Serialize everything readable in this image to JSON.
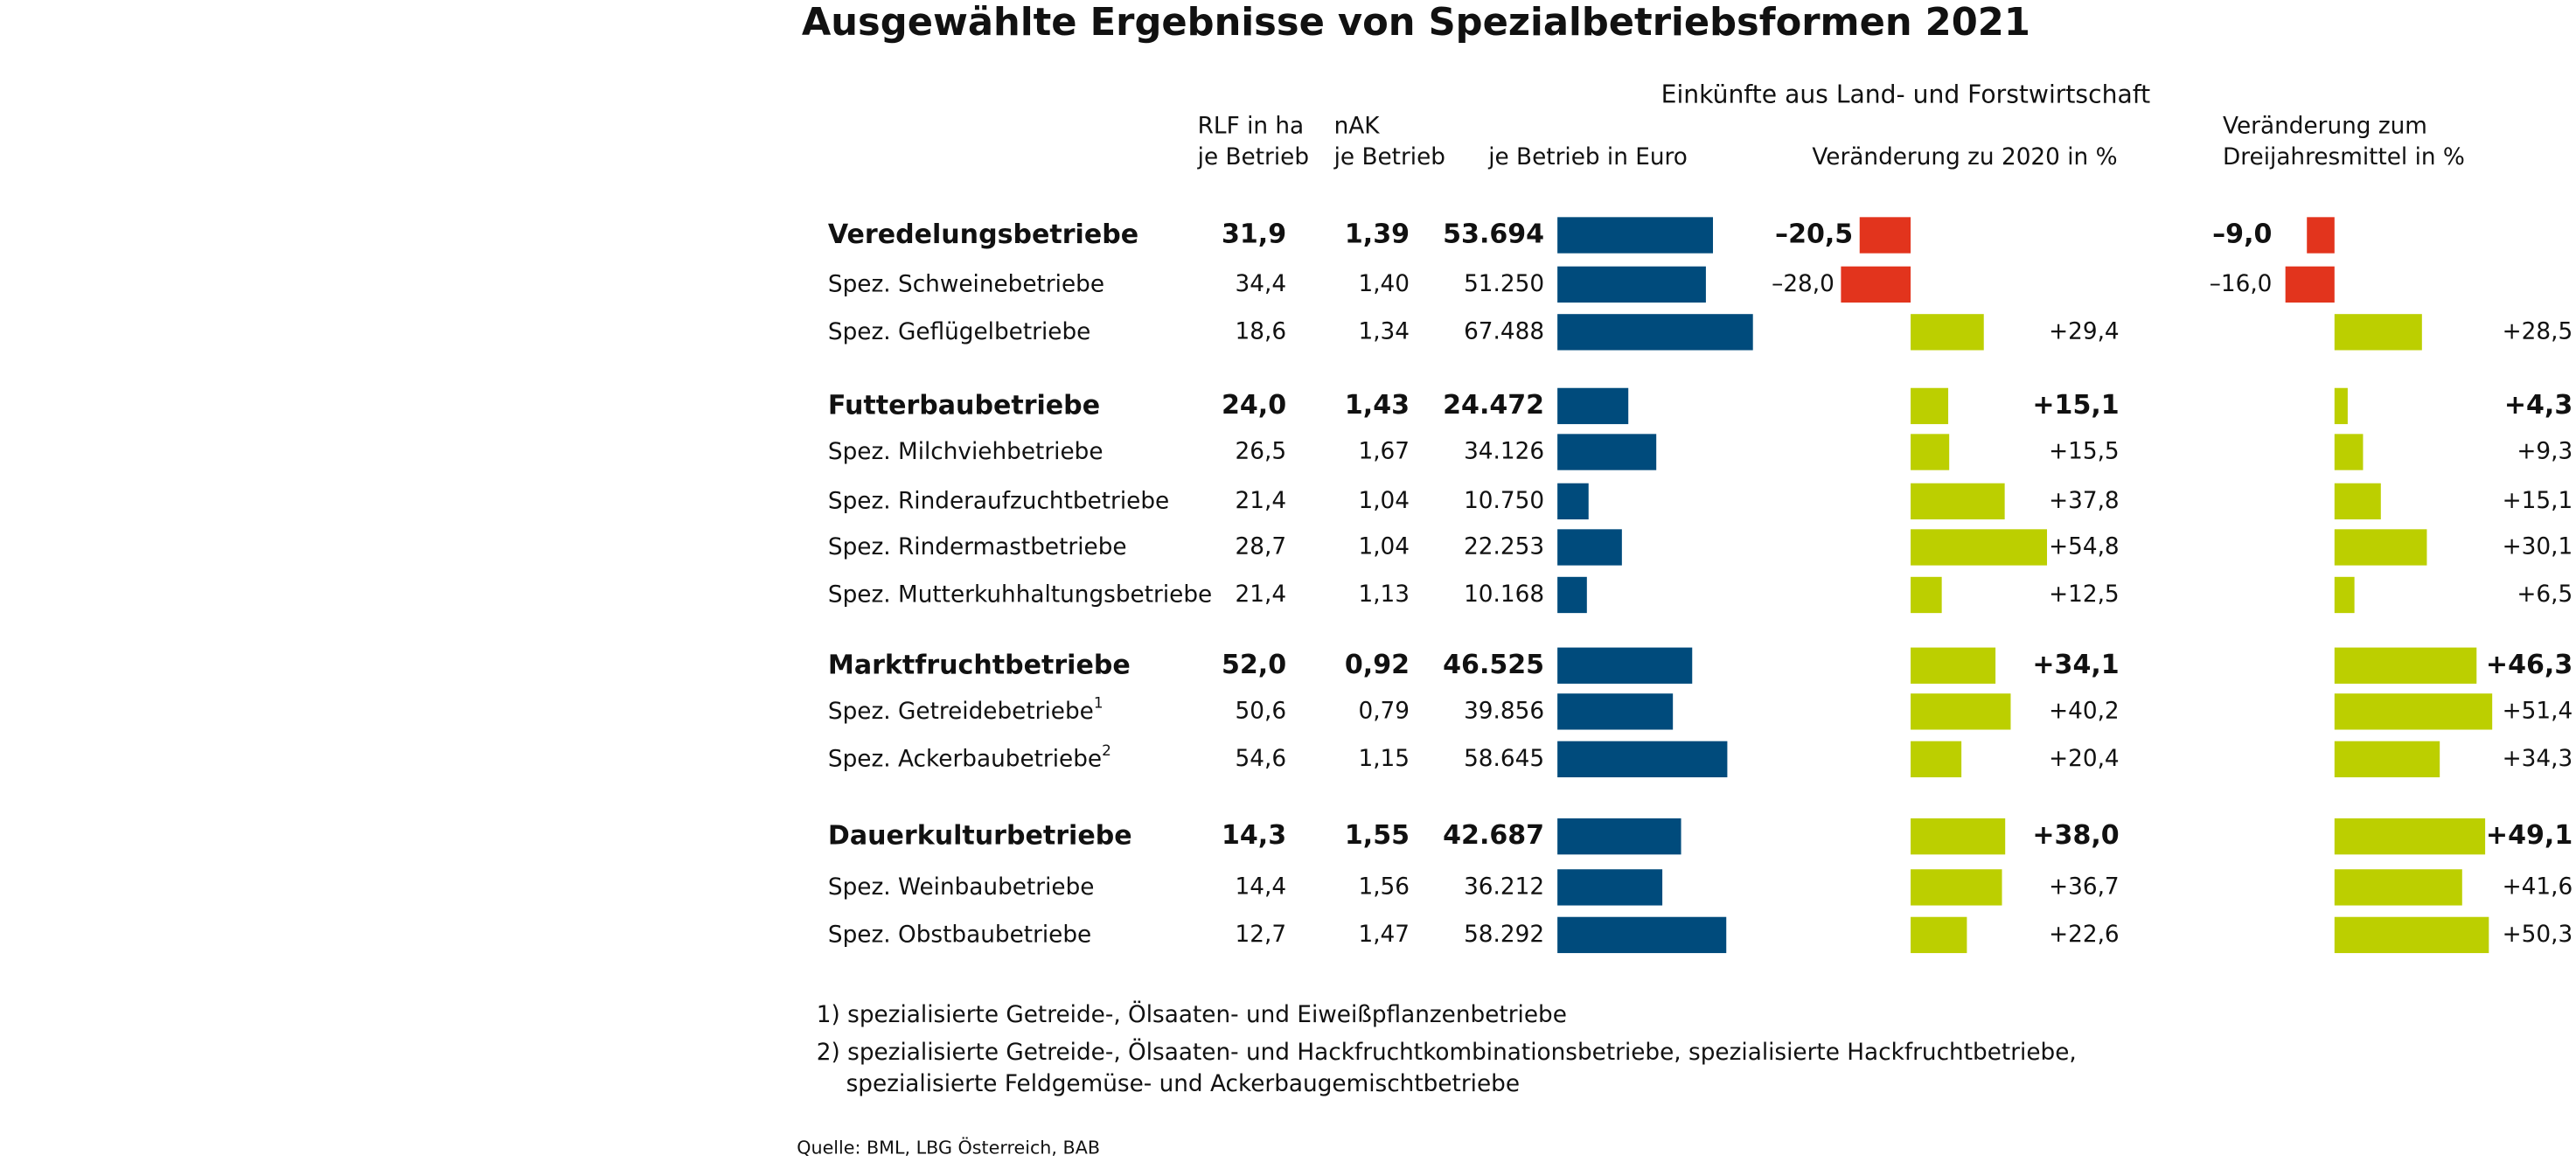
{
  "chart_data": {
    "type": "table-bar",
    "title": "Ausgewählte Ergebnisse von Spezialbetriebsformen 2021",
    "group_header": "Einkünfte aus Land- und Forstwirtschaft",
    "categories": [
      "Veredelungsbetriebe",
      "Spez. Schweinebetriebe",
      "Spez. Geflügelbetriebe",
      "Futterbaubetriebe",
      "Spez. Milchviehbetriebe",
      "Spez. Rinderaufzuchtbetriebe",
      "Spez. Rindermastbetriebe",
      "Spez. Mutterkuhhaltungsbetriebe",
      "Marktfruchtbetriebe",
      "Spez. Getreidebetriebe",
      "Spez. Ackerbaubetriebe",
      "Dauerkulturbetriebe",
      "Spez. Weinbaubetriebe",
      "Spez. Obstbaubetriebe"
    ],
    "category_notes": [
      null,
      null,
      null,
      null,
      null,
      null,
      null,
      null,
      null,
      "1",
      "2",
      null,
      null,
      null
    ],
    "bold": [
      true,
      false,
      false,
      true,
      false,
      false,
      false,
      false,
      true,
      false,
      false,
      true,
      false,
      false
    ],
    "series": [
      {
        "name": [
          "RLF in ha",
          "je Betrieb"
        ],
        "values": [
          31.9,
          34.4,
          18.6,
          24.0,
          26.5,
          21.4,
          28.7,
          21.4,
          52.0,
          50.6,
          54.6,
          14.3,
          14.4,
          12.7
        ],
        "value_labels": [
          "31,9",
          "34,4",
          "18,6",
          "24,0",
          "26,5",
          "21,4",
          "28,7",
          "21,4",
          "52,0",
          "50,6",
          "54,6",
          "14,3",
          "14,4",
          "12,7"
        ]
      },
      {
        "name": [
          "nAK",
          "je Betrieb"
        ],
        "values": [
          1.39,
          1.4,
          1.34,
          1.43,
          1.67,
          1.04,
          1.04,
          1.13,
          0.92,
          0.79,
          1.15,
          1.55,
          1.56,
          1.47
        ],
        "value_labels": [
          "1,39",
          "1,40",
          "1,34",
          "1,43",
          "1,67",
          "1,04",
          "1,04",
          "1,13",
          "0,92",
          "0,79",
          "1,15",
          "1,55",
          "1,56",
          "1,47"
        ]
      },
      {
        "name": [
          "je Betrieb in Euro"
        ],
        "color": "#004b7c",
        "values": [
          53694,
          51250,
          67488,
          24472,
          34126,
          10750,
          22253,
          10168,
          46525,
          39856,
          58645,
          42687,
          36212,
          58292
        ],
        "value_labels": [
          "53.694",
          "51.250",
          "67.488",
          "24.472",
          "34.126",
          "10.750",
          "22.253",
          "10.168",
          "46.525",
          "39.856",
          "58.645",
          "42.687",
          "36.212",
          "58.292"
        ]
      },
      {
        "name": [
          "Veränderung zu 2020 in %"
        ],
        "color": "#bccf00",
        "negative_color": "#e2341d",
        "values": [
          -20.5,
          -28.0,
          29.4,
          15.1,
          15.5,
          37.8,
          54.8,
          12.5,
          34.1,
          40.2,
          20.4,
          38.0,
          36.7,
          22.6
        ],
        "value_labels": [
          "–20,5",
          "–28,0",
          "+29,4",
          "+15,1",
          "+15,5",
          "+37,8",
          "+54,8",
          "+12,5",
          "+34,1",
          "+40,2",
          "+20,4",
          "+38,0",
          "+36,7",
          "+22,6"
        ]
      },
      {
        "name": [
          "Veränderung zum",
          "Dreijahresmittel in %"
        ],
        "color": "#bccf00",
        "negative_color": "#e2341d",
        "values": [
          -9.0,
          -16.0,
          28.5,
          4.3,
          9.3,
          15.1,
          30.1,
          6.5,
          46.3,
          51.4,
          34.3,
          49.1,
          41.6,
          50.3
        ],
        "value_labels": [
          "–9,0",
          "–16,0",
          "+28,5",
          "+4,3",
          "+9,3",
          "+15,1",
          "+30,1",
          "+6,5",
          "+46,3",
          "+51,4",
          "+34,3",
          "+49,1",
          "+41,6",
          "+50,3"
        ]
      }
    ],
    "footnotes": [
      [
        "1)  spezialisierte Getreide-, Ölsaaten- und Eiweißpflanzenbetriebe"
      ],
      [
        "2) spezialisierte Getreide-, Ölsaaten- und Hackfruchtkombinationsbetriebe, spezialisierte Hackfruchtbetriebe,",
        "spezialisierte Feldgemüse- und Ackerbaugemischtbetriebe"
      ]
    ],
    "source": "Quelle: BML, LBG Österreich, BAB"
  }
}
